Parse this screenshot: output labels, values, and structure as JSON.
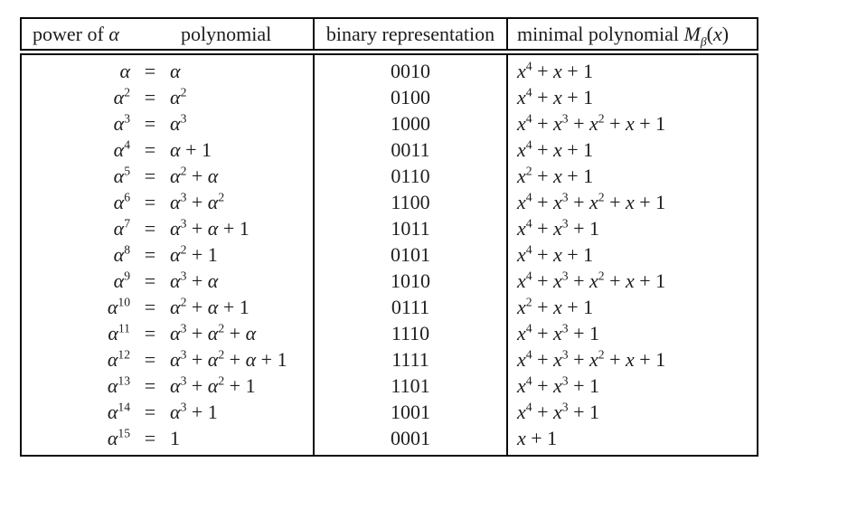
{
  "colors": {
    "background": "#ffffff",
    "text": "#1d1d1d",
    "border": "#0a0a0a"
  },
  "table": {
    "header": {
      "power_label": "power of α",
      "polynomial_label": "polynomial",
      "binary_label": "binary representation",
      "minimal_label": "minimal polynomial M_β(x)"
    },
    "rows": [
      {
        "power": "α",
        "eq": "=",
        "poly": "α",
        "binary": "0010",
        "minimal": "x^4 + x + 1"
      },
      {
        "power": "α^2",
        "eq": "=",
        "poly": "α^2",
        "binary": "0100",
        "minimal": "x^4 + x + 1"
      },
      {
        "power": "α^3",
        "eq": "=",
        "poly": "α^3",
        "binary": "1000",
        "minimal": "x^4 + x^3 + x^2 + x + 1"
      },
      {
        "power": "α^4",
        "eq": "=",
        "poly": "α + 1",
        "binary": "0011",
        "minimal": "x^4 + x + 1"
      },
      {
        "power": "α^5",
        "eq": "=",
        "poly": "α^2 + α",
        "binary": "0110",
        "minimal": "x^2 + x + 1"
      },
      {
        "power": "α^6",
        "eq": "=",
        "poly": "α^3 + α^2",
        "binary": "1100",
        "minimal": "x^4 + x^3 + x^2 + x + 1"
      },
      {
        "power": "α^7",
        "eq": "=",
        "poly": "α^3 + α + 1",
        "binary": "1011",
        "minimal": "x^4 + x^3 + 1"
      },
      {
        "power": "α^8",
        "eq": "=",
        "poly": "α^2 + 1",
        "binary": "0101",
        "minimal": "x^4 + x + 1"
      },
      {
        "power": "α^9",
        "eq": "=",
        "poly": "α^3 + α",
        "binary": "1010",
        "minimal": "x^4 + x^3 + x^2 + x + 1"
      },
      {
        "power": "α^10",
        "eq": "=",
        "poly": "α^2 + α + 1",
        "binary": "0111",
        "minimal": "x^2 + x + 1"
      },
      {
        "power": "α^11",
        "eq": "=",
        "poly": "α^3 + α^2 + α",
        "binary": "1110",
        "minimal": "x^4 + x^3 + 1"
      },
      {
        "power": "α^12",
        "eq": "=",
        "poly": "α^3 + α^2 + α + 1",
        "binary": "1111",
        "minimal": "x^4 + x^3 + x^2 + x + 1"
      },
      {
        "power": "α^13",
        "eq": "=",
        "poly": "α^3 + α^2 + 1",
        "binary": "1101",
        "minimal": "x^4 + x^3 + 1"
      },
      {
        "power": "α^14",
        "eq": "=",
        "poly": "α^3 + 1",
        "binary": "1001",
        "minimal": "x^4 + x^3 + 1"
      },
      {
        "power": "α^15",
        "eq": "=",
        "poly": "1",
        "binary": "0001",
        "minimal": "x + 1"
      }
    ]
  }
}
